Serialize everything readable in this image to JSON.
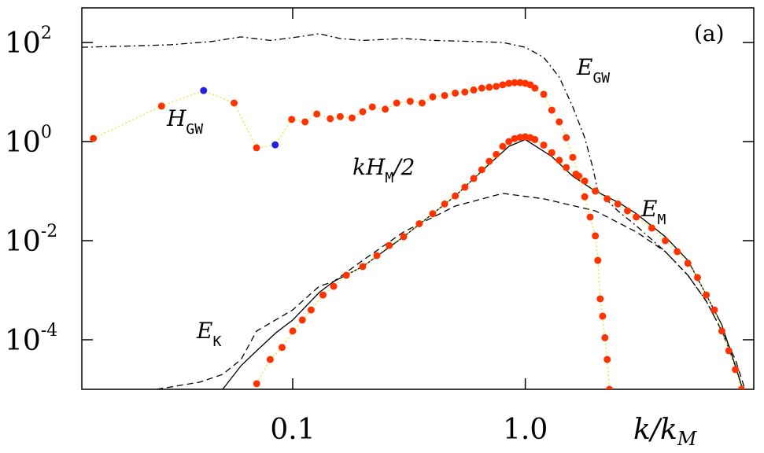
{
  "chart_data": {
    "type": "line",
    "xscale": "log",
    "yscale": "log",
    "xlim": [
      0.0124,
      9.6
    ],
    "ylim": [
      1e-05,
      500
    ],
    "xticks": [
      0.1,
      {
        "value": 1,
        "label": "1.0"
      }
    ],
    "yticks": [
      {
        "value": 0.0001,
        "label": "10",
        "exponent": "-4"
      },
      {
        "value": 0.01,
        "label": "10",
        "exponent": "-2"
      },
      {
        "value": 1,
        "label": "10",
        "exponent": "0"
      },
      {
        "value": 100,
        "label": "10",
        "exponent": "2"
      }
    ],
    "xlabel": {
      "text": "k/k",
      "sub": "M"
    },
    "annotations": [
      {
        "text": "(a)"
      },
      {
        "text": "E",
        "sub": "GW"
      },
      {
        "text": "H",
        "sub": "GW"
      },
      {
        "text": "kH",
        "sub": "M",
        "after": "/2"
      },
      {
        "text": "E",
        "sub": "M"
      },
      {
        "text": "E",
        "sub": "K"
      }
    ],
    "series": [
      {
        "style": "dashdot",
        "color": "#000000",
        "x": [
          0.0124,
          0.02,
          0.03,
          0.045,
          0.06,
          0.08,
          0.1,
          0.13,
          0.16,
          0.2,
          0.3,
          0.4,
          0.6,
          0.8,
          1.0,
          1.2,
          1.4,
          1.6,
          1.8,
          1.95,
          2.05,
          2.5,
          3,
          4,
          5,
          6,
          7,
          8,
          8.6
        ],
        "values": [
          80,
          85,
          90,
          105,
          130,
          110,
          125,
          150,
          120,
          110,
          120,
          110,
          105,
          100,
          80,
          50,
          20,
          5,
          1.2,
          0.3,
          0.1,
          0.04,
          0.02,
          0.006,
          0.002,
          0.0006,
          0.00015,
          3e-05,
          1e-05
        ]
      },
      {
        "style": "solid",
        "color": "#000000",
        "x": [
          0.05,
          0.06,
          0.07,
          0.085,
          0.1,
          0.13,
          0.15,
          0.2,
          0.3,
          0.4,
          0.5,
          0.7,
          0.85,
          1.0,
          1.3,
          1.6,
          2.0,
          2.5,
          3.0,
          4.0,
          5.0,
          6.0,
          7.0,
          8.0,
          8.6
        ],
        "values": [
          1e-05,
          3e-05,
          6e-05,
          0.00014,
          0.00025,
          0.0009,
          0.0015,
          0.003,
          0.012,
          0.035,
          0.08,
          0.35,
          0.8,
          1.1,
          0.5,
          0.2,
          0.1,
          0.06,
          0.035,
          0.012,
          0.004,
          0.0008,
          0.0002,
          3e-05,
          1e-05
        ]
      },
      {
        "style": "dashed",
        "color": "#000000",
        "x": [
          0.026,
          0.04,
          0.05,
          0.06,
          0.07,
          0.1,
          0.13,
          0.15,
          0.2,
          0.3,
          0.5,
          0.8,
          1.2,
          2.0,
          3.0,
          4.0,
          5.0,
          6.0,
          7.0,
          8.0,
          8.8
        ],
        "values": [
          1e-05,
          1.4e-05,
          2e-05,
          4e-05,
          0.00015,
          0.0004,
          0.0012,
          0.0015,
          0.004,
          0.015,
          0.05,
          0.09,
          0.07,
          0.04,
          0.015,
          0.006,
          0.002,
          0.0006,
          0.00015,
          4e-05,
          1e-05
        ]
      },
      {
        "style": "dots",
        "color": "#ff3300",
        "line_color": "#e8e840",
        "x": [
          0.0139,
          0.0273,
          0.0414,
          0.056,
          0.0699,
          0.0841,
          0.099,
          0.113,
          0.127,
          0.145,
          0.16,
          0.18,
          0.2,
          0.22,
          0.25,
          0.28,
          0.32,
          0.36,
          0.4,
          0.45,
          0.5,
          0.55,
          0.6,
          0.65,
          0.7,
          0.75,
          0.8,
          0.85,
          0.9,
          0.95,
          1.0,
          1.05,
          1.1,
          1.2,
          1.3,
          1.4,
          1.5,
          1.6,
          1.7,
          1.8,
          1.9,
          2.0,
          2.05,
          2.1,
          2.15,
          2.2,
          2.25,
          2.3
        ],
        "values": [
          1.16,
          5.2,
          10.7,
          6.0,
          0.75,
          0.86,
          2.8,
          2.5,
          3.6,
          2.9,
          3.2,
          3.0,
          4.0,
          5.0,
          4.5,
          6.0,
          6.5,
          6.0,
          8.0,
          8.5,
          9.5,
          10.0,
          11.0,
          12.0,
          12.5,
          13.0,
          14.0,
          15.0,
          15.5,
          15.5,
          15.0,
          14.0,
          12.0,
          9.0,
          4.3,
          2.5,
          1.2,
          0.48,
          0.2,
          0.077,
          0.03,
          0.0125,
          0.004,
          0.00067,
          0.0003,
          0.00011,
          4e-05,
          1e-05
        ],
        "point_colors": [
          "#ff3300",
          "#ff3300",
          "#2222dd",
          "#ff3300",
          "#ff3300",
          "#2222dd",
          "#ff3300",
          "#ff3300",
          "#ff3300",
          "#ff3300",
          "#ff3300",
          "#ff3300",
          "#ff3300",
          "#ff3300",
          "#ff3300",
          "#ff3300",
          "#ff3300",
          "#ff3300",
          "#ff3300",
          "#ff3300",
          "#ff3300",
          "#ff3300",
          "#ff3300",
          "#ff3300",
          "#ff3300",
          "#ff3300",
          "#ff3300",
          "#ff3300",
          "#ff3300",
          "#ff3300",
          "#ff3300",
          "#ff3300",
          "#ff3300",
          "#ff3300",
          "#ff3300",
          "#ff3300",
          "#ff3300",
          "#ff3300",
          "#ff3300",
          "#ff3300",
          "#ff3300",
          "#ff3300",
          "#ff3300",
          "#ff3300",
          "#ff3300",
          "#ff3300",
          "#ff3300",
          "#ff3300"
        ]
      },
      {
        "style": "dots",
        "color": "#ff3300",
        "line_color": "#e8e840",
        "x": [
          0.07,
          0.08,
          0.09,
          0.1,
          0.11,
          0.12,
          0.135,
          0.15,
          0.17,
          0.2,
          0.23,
          0.26,
          0.3,
          0.35,
          0.4,
          0.45,
          0.5,
          0.55,
          0.6,
          0.65,
          0.7,
          0.75,
          0.8,
          0.85,
          0.9,
          0.95,
          1.0,
          1.05,
          1.1,
          1.2,
          1.3,
          1.4,
          1.5,
          1.65,
          1.8,
          2.0,
          2.25,
          2.5,
          2.75,
          3.0,
          3.5,
          4.0,
          4.5,
          5.0,
          5.5,
          6.0,
          6.5,
          7.0,
          7.5,
          8.0,
          8.5
        ],
        "values": [
          1.3e-05,
          4e-05,
          7e-05,
          0.00015,
          0.00025,
          0.0004,
          0.0008,
          0.0012,
          0.002,
          0.003,
          0.005,
          0.008,
          0.012,
          0.022,
          0.035,
          0.055,
          0.08,
          0.12,
          0.18,
          0.27,
          0.4,
          0.55,
          0.8,
          1.0,
          1.15,
          1.22,
          1.25,
          1.2,
          1.1,
          0.85,
          0.6,
          0.42,
          0.3,
          0.22,
          0.16,
          0.1,
          0.07,
          0.055,
          0.04,
          0.03,
          0.018,
          0.01,
          0.006,
          0.0035,
          0.0018,
          0.0008,
          0.0004,
          0.00015,
          6e-05,
          2.5e-05,
          1e-05
        ]
      }
    ]
  }
}
